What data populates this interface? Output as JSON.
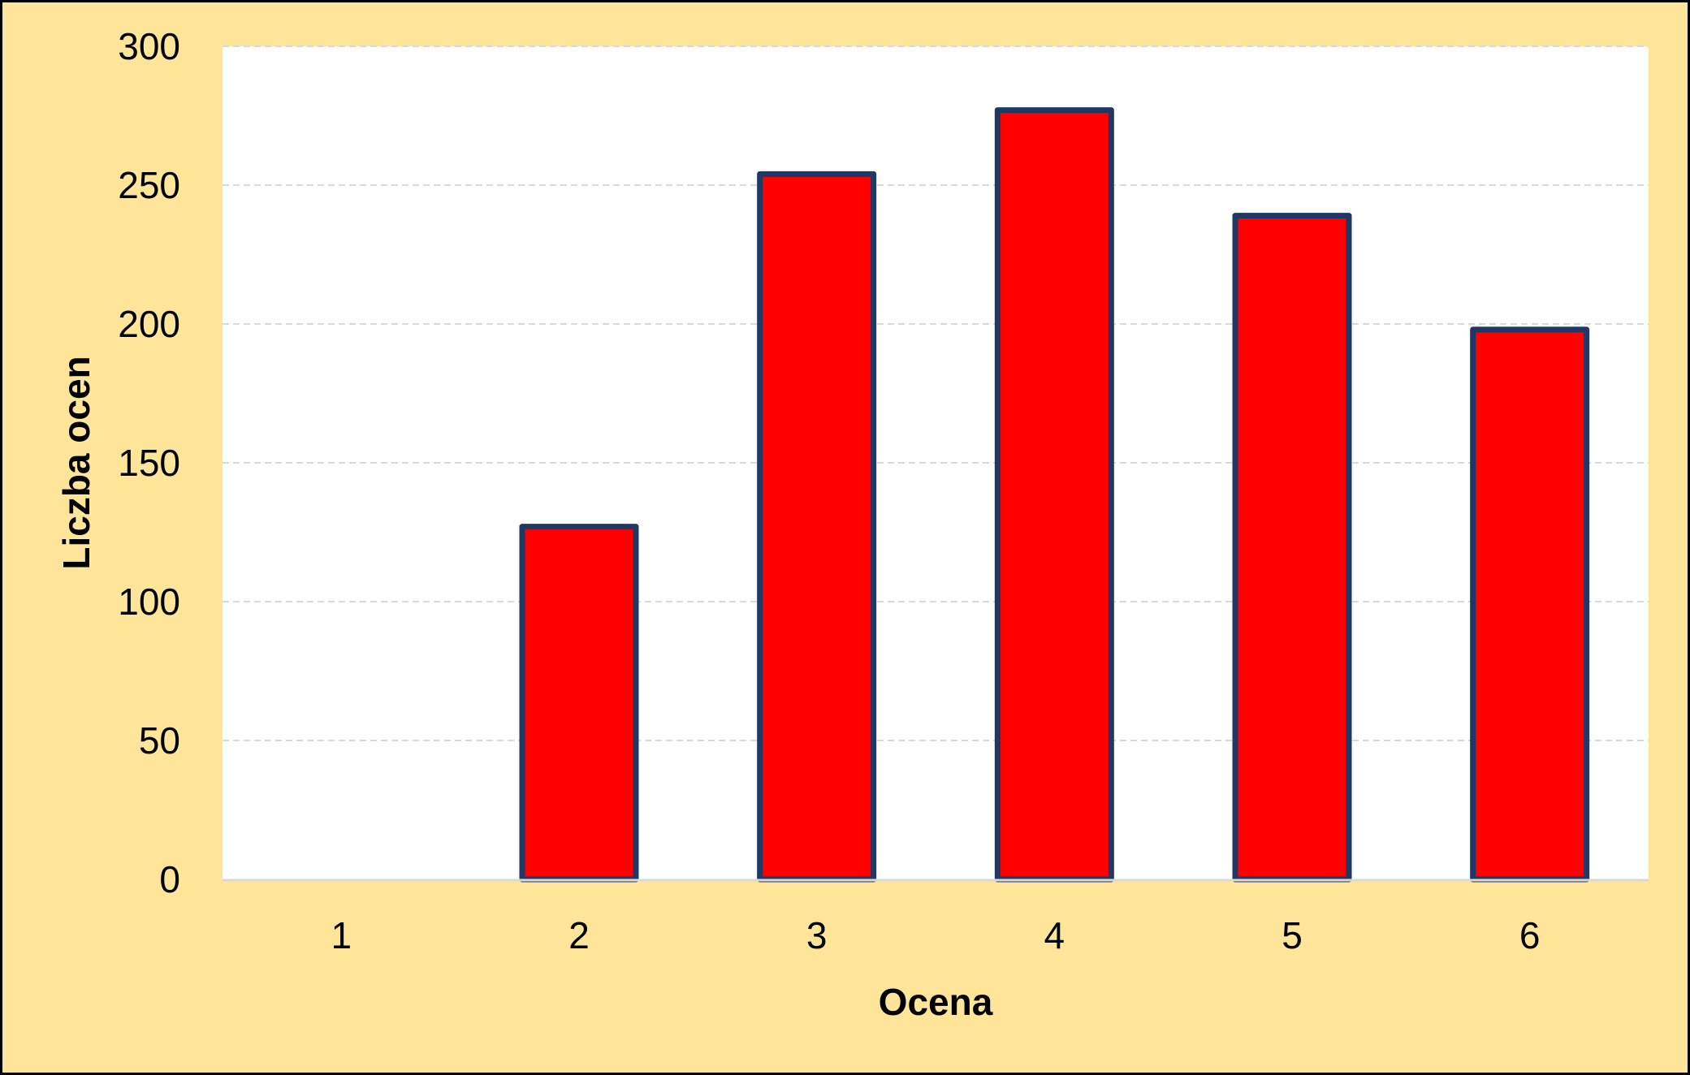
{
  "chart_data": {
    "type": "bar",
    "title": "",
    "xlabel": "Ocena",
    "ylabel": "Liczba ocen",
    "categories": [
      "1",
      "2",
      "3",
      "4",
      "5",
      "6"
    ],
    "series": [
      {
        "values": [
          0,
          127,
          254,
          277,
          239,
          198
        ]
      }
    ],
    "ylim": [
      0,
      300
    ],
    "yticks": [
      "0",
      "50",
      "100",
      "150",
      "200",
      "250",
      "300"
    ],
    "grid": true,
    "legend": "none",
    "colors": {
      "background": "#ffe599",
      "plot_area": "#ffffff",
      "bar_fill": "#ff0000",
      "bar_outline": "#1f3864",
      "gridline": "#d9d9d9",
      "axis_line": "#d9d9d9",
      "frame": "#000000"
    }
  }
}
